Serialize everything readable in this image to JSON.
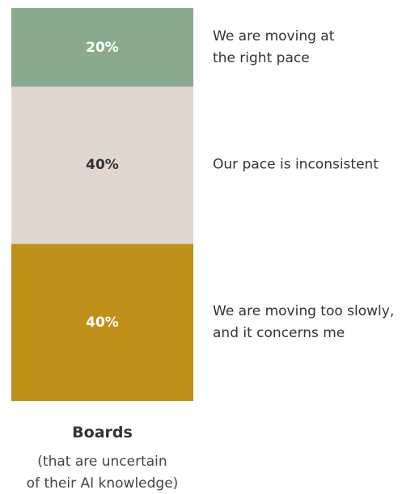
{
  "chart_data": {
    "type": "bar",
    "stacked": true,
    "categories": [
      "Boards"
    ],
    "category_note": "(that are uncertain\nof their AI knowledge)",
    "ylim": [
      0,
      100
    ],
    "series": [
      {
        "name": "We are moving too slowly,\nand it concerns me",
        "color": "#c0901a",
        "label_color": "#ffffff",
        "values": [
          40
        ],
        "value_labels": [
          "40%"
        ]
      },
      {
        "name": "Our pace is inconsistent",
        "color": "#e0d8cf",
        "label_color": "#333333",
        "values": [
          40
        ],
        "value_labels": [
          "40%"
        ]
      },
      {
        "name": "We are moving at\nthe right pace",
        "color": "#8aaa8f",
        "label_color": "#ffffff",
        "values": [
          20
        ],
        "value_labels": [
          "20%"
        ]
      }
    ]
  }
}
